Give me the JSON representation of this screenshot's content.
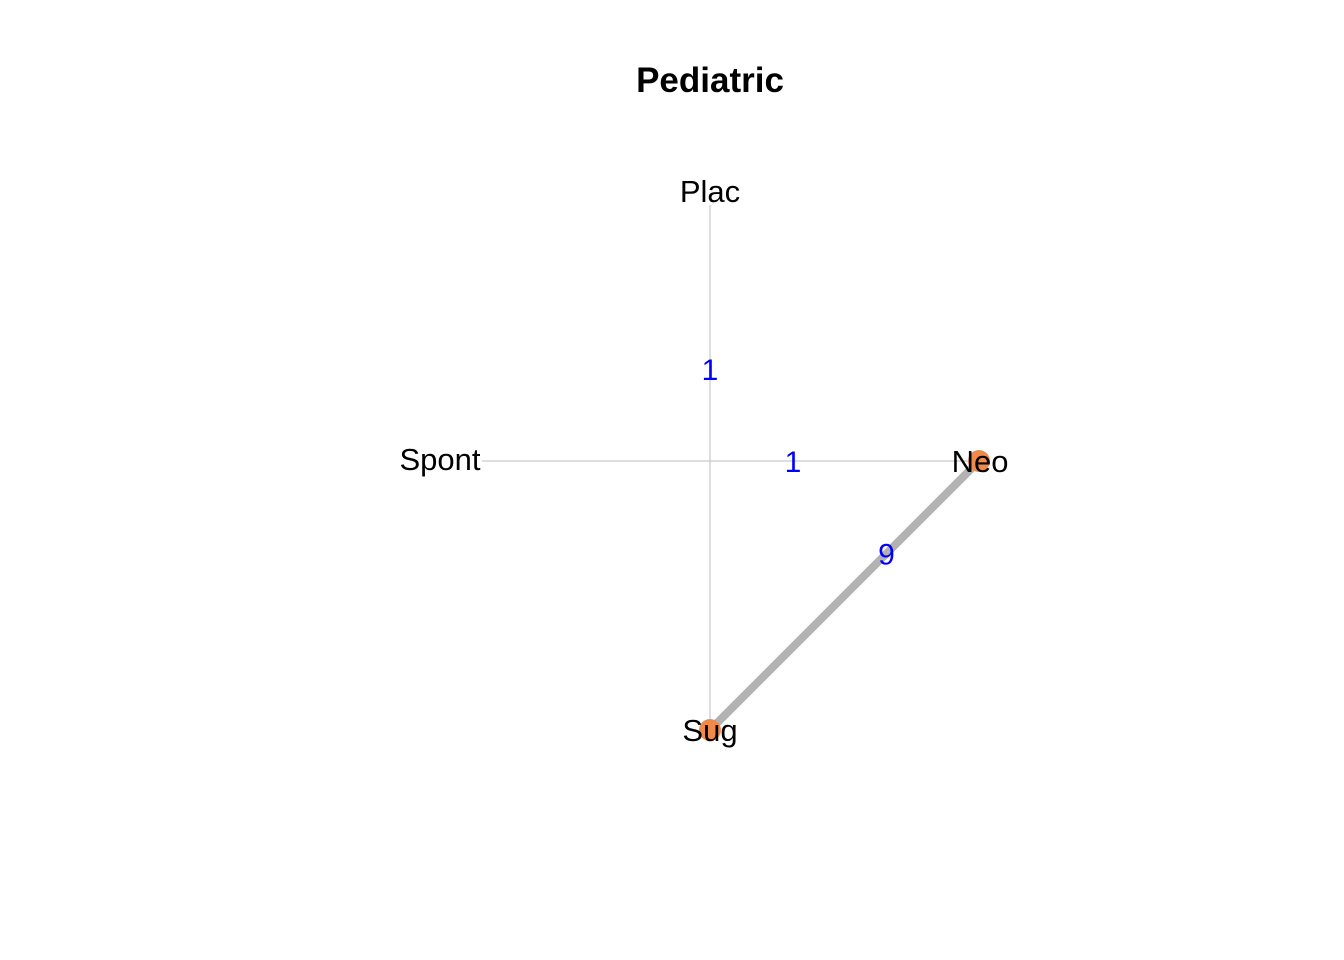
{
  "title": "Pediatric",
  "colors": {
    "active_node": "#f08a4b",
    "thin_edge": "#bdbdbd",
    "thick_edge": "#b2b2b2",
    "edge_label": "#0000ff"
  },
  "nodes": [
    {
      "id": "Plac",
      "label": "Plac",
      "highlighted": false
    },
    {
      "id": "Spont",
      "label": "Spont",
      "highlighted": false
    },
    {
      "id": "Neo",
      "label": "Neo",
      "highlighted": true
    },
    {
      "id": "Sug",
      "label": "Sug",
      "highlighted": true
    }
  ],
  "edges": [
    {
      "from": "Plac",
      "to": "Sug",
      "label": "1",
      "weight": 1
    },
    {
      "from": "Spont",
      "to": "Neo",
      "label": "1",
      "weight": 1
    },
    {
      "from": "Neo",
      "to": "Sug",
      "label": "9",
      "weight": 9
    }
  ]
}
